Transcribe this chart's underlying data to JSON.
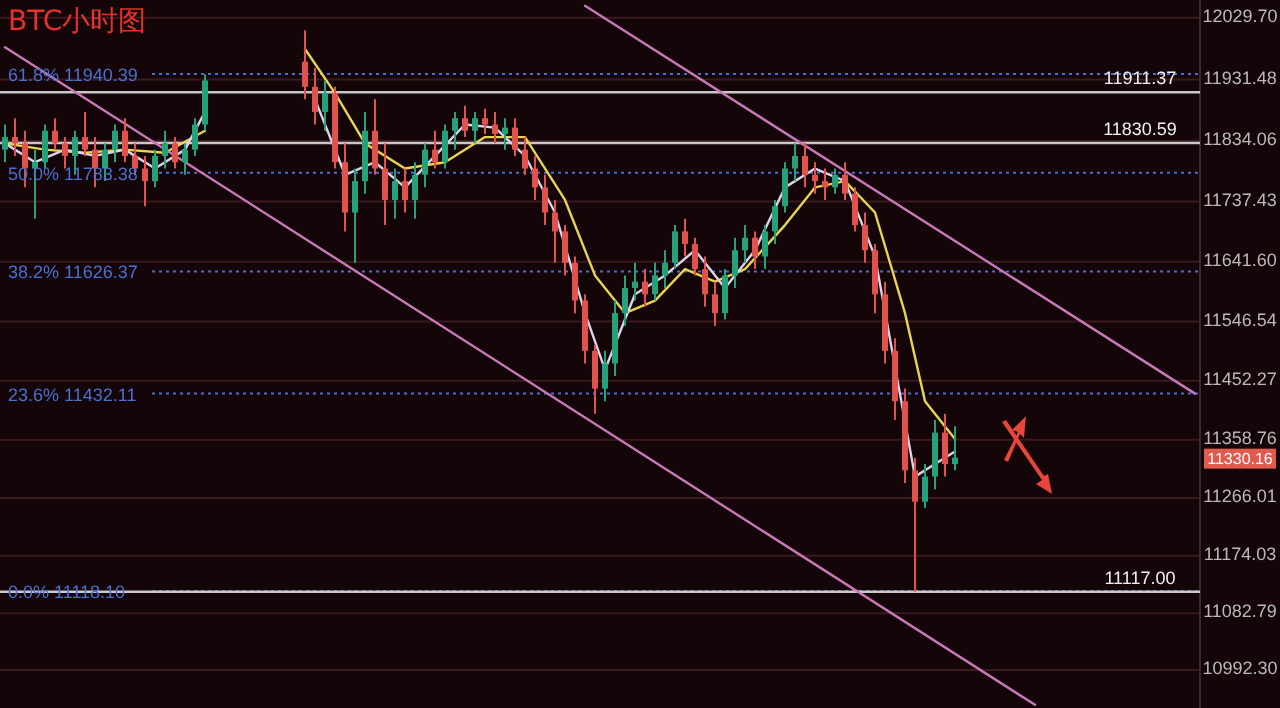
{
  "chart_data": {
    "type": "candlestick",
    "title": "BTC小时图",
    "categories": [
      null,
      null,
      null,
      null,
      null,
      null,
      null,
      null,
      null,
      null,
      null,
      null,
      null,
      null,
      null,
      null,
      null,
      null,
      null,
      null,
      null,
      null,
      null,
      null,
      null,
      null,
      null,
      null,
      null,
      null,
      null,
      null,
      null,
      null,
      null,
      null,
      null,
      null,
      null,
      null,
      null,
      null,
      null,
      null,
      null,
      null,
      null,
      null,
      null,
      null,
      null,
      null,
      null,
      null,
      null,
      null,
      null,
      null,
      null,
      null,
      null,
      null,
      null,
      null,
      null,
      null,
      null,
      null,
      null,
      null,
      null,
      null,
      null,
      null,
      null,
      null,
      null,
      null,
      null,
      null,
      null,
      null,
      null,
      null,
      null,
      null,
      null,
      null,
      null,
      null,
      null,
      null,
      null,
      null,
      null,
      null,
      null,
      null,
      null,
      null,
      null,
      null,
      null,
      null,
      null,
      null,
      null,
      null,
      null,
      null,
      null,
      null,
      null,
      null,
      null,
      null,
      null,
      null,
      null,
      null
    ],
    "ohlc": [
      [
        11820,
        11860,
        11800,
        11840
      ],
      [
        11840,
        11870,
        11810,
        11830
      ],
      [
        11830,
        11850,
        11760,
        11790
      ],
      [
        11790,
        11820,
        11710,
        11800
      ],
      [
        11800,
        11860,
        11790,
        11850
      ],
      [
        11850,
        11870,
        11820,
        11830
      ],
      [
        11830,
        11840,
        11790,
        11810
      ],
      [
        11810,
        11850,
        11780,
        11840
      ],
      [
        11840,
        11880,
        11810,
        11820
      ],
      [
        11820,
        11840,
        11760,
        11790
      ],
      [
        11790,
        11830,
        11770,
        11820
      ],
      [
        11820,
        11860,
        11800,
        11850
      ],
      [
        11850,
        11870,
        11800,
        11810
      ],
      [
        11810,
        11830,
        11780,
        11790
      ],
      [
        11790,
        11810,
        11730,
        11770
      ],
      [
        11770,
        11820,
        11760,
        11810
      ],
      [
        11810,
        11850,
        11790,
        11830
      ],
      [
        11830,
        11840,
        11790,
        11800
      ],
      [
        11800,
        11830,
        11780,
        11820
      ],
      [
        11820,
        11870,
        11810,
        11860
      ],
      [
        11860,
        11940,
        11850,
        11930
      ],
      null,
      null,
      null,
      null,
      null,
      null,
      null,
      null,
      null,
      [
        11960,
        12010,
        11900,
        11920
      ],
      [
        11920,
        11950,
        11860,
        11880
      ],
      [
        11880,
        11930,
        11850,
        11910
      ],
      [
        11910,
        11920,
        11790,
        11800
      ],
      [
        11800,
        11830,
        11690,
        11720
      ],
      [
        11720,
        11790,
        11640,
        11770
      ],
      [
        11770,
        11880,
        11750,
        11850
      ],
      [
        11850,
        11900,
        11780,
        11790
      ],
      [
        11790,
        11830,
        11700,
        11740
      ],
      [
        11740,
        11790,
        11710,
        11770
      ],
      [
        11770,
        11790,
        11720,
        11740
      ],
      [
        11740,
        11800,
        11710,
        11780
      ],
      [
        11780,
        11830,
        11760,
        11820
      ],
      [
        11820,
        11850,
        11790,
        11800
      ],
      [
        11800,
        11860,
        11790,
        11850
      ],
      [
        11850,
        11880,
        11820,
        11870
      ],
      [
        11870,
        11890,
        11840,
        11850
      ],
      [
        11850,
        11880,
        11830,
        11870
      ],
      [
        11870,
        11885,
        11845,
        11860
      ],
      [
        11860,
        11880,
        11830,
        11845
      ],
      [
        11845,
        11870,
        11820,
        11855
      ],
      [
        11855,
        11870,
        11810,
        11820
      ],
      [
        11820,
        11840,
        11780,
        11790
      ],
      [
        11790,
        11810,
        11740,
        11760
      ],
      [
        11760,
        11780,
        11700,
        11720
      ],
      [
        11720,
        11740,
        11640,
        11690
      ],
      [
        11690,
        11700,
        11620,
        11640
      ],
      [
        11640,
        11650,
        11560,
        11580
      ],
      [
        11580,
        11590,
        11480,
        11500
      ],
      [
        11500,
        11510,
        11400,
        11440
      ],
      [
        11440,
        11500,
        11420,
        11480
      ],
      [
        11480,
        11580,
        11460,
        11560
      ],
      [
        11560,
        11620,
        11540,
        11600
      ],
      [
        11600,
        11640,
        11580,
        11610
      ],
      [
        11610,
        11630,
        11570,
        11590
      ],
      [
        11590,
        11640,
        11580,
        11620
      ],
      [
        11620,
        11660,
        11600,
        11640
      ],
      [
        11640,
        11700,
        11630,
        11690
      ],
      [
        11690,
        11710,
        11650,
        11670
      ],
      [
        11670,
        11680,
        11620,
        11630
      ],
      [
        11630,
        11650,
        11570,
        11590
      ],
      [
        11590,
        11610,
        11540,
        11560
      ],
      [
        11560,
        11630,
        11550,
        11620
      ],
      [
        11620,
        11680,
        11600,
        11660
      ],
      [
        11660,
        11700,
        11640,
        11680
      ],
      [
        11680,
        11690,
        11630,
        11650
      ],
      [
        11650,
        11700,
        11630,
        11690
      ],
      [
        11690,
        11740,
        11670,
        11730
      ],
      [
        11730,
        11800,
        11720,
        11790
      ],
      [
        11790,
        11830,
        11770,
        11810
      ],
      [
        11810,
        11830.59,
        11760,
        11780
      ],
      [
        11780,
        11800,
        11750,
        11770
      ],
      [
        11770,
        11790,
        11740,
        11760
      ],
      [
        11760,
        11790,
        11750,
        11780
      ],
      [
        11780,
        11800,
        11740,
        11750
      ],
      [
        11750,
        11760,
        11690,
        11700
      ],
      [
        11700,
        11720,
        11640,
        11660
      ],
      [
        11660,
        11670,
        11560,
        11590
      ],
      [
        11590,
        11610,
        11480,
        11500
      ],
      [
        11500,
        11520,
        11390,
        11420
      ],
      [
        11420,
        11440,
        11290,
        11310
      ],
      [
        11310,
        11330,
        11117,
        11260
      ],
      [
        11260,
        11320,
        11250,
        11300
      ],
      [
        11300,
        11390,
        11280,
        11370
      ],
      [
        11370,
        11400,
        11300,
        11320
      ],
      [
        11320,
        11380,
        11310,
        11330.16
      ],
      null,
      null,
      null,
      null,
      null,
      null,
      null,
      null,
      null,
      null,
      null,
      null,
      null,
      null,
      null,
      null,
      null,
      null,
      null,
      null,
      null,
      null,
      null,
      null
    ],
    "series": [
      {
        "type": "line",
        "color": "#e8d44d",
        "values": [
          11830,
          null,
          null,
          null,
          11820,
          null,
          null,
          null,
          11815,
          null,
          null,
          null,
          11820,
          null,
          null,
          null,
          11815,
          null,
          null,
          null,
          11850,
          null,
          null,
          null,
          null,
          null,
          null,
          null,
          null,
          null,
          null,
          null,
          null,
          null,
          null,
          null,
          null,
          null,
          null,
          null,
          null,
          null,
          null,
          null,
          null,
          null,
          null,
          null,
          null,
          null,
          null,
          null,
          null,
          null,
          null,
          null,
          null,
          null,
          null,
          null,
          null,
          null,
          null,
          null,
          null,
          null,
          null,
          null,
          null,
          null,
          null,
          null,
          null,
          null,
          null,
          null,
          null,
          null,
          null,
          null,
          null,
          null,
          null,
          null,
          null,
          null,
          null,
          null,
          null,
          null,
          null,
          null,
          null,
          null,
          null,
          null,
          null,
          null,
          null,
          null,
          null,
          null,
          null,
          null,
          null,
          null,
          null,
          null,
          null,
          null,
          null,
          null,
          null,
          null,
          null,
          null,
          null,
          null,
          null,
          null
        ]
      },
      {
        "type": "line",
        "color": "#e8d44d",
        "values": [
          null,
          null,
          null,
          null,
          null,
          null,
          null,
          null,
          null,
          null,
          null,
          null,
          null,
          null,
          null,
          null,
          null,
          null,
          null,
          null,
          null,
          null,
          null,
          null,
          null,
          null,
          null,
          null,
          null,
          null,
          11980,
          null,
          null,
          11910,
          null,
          null,
          11830,
          null,
          null,
          null,
          11790,
          null,
          null,
          null,
          11800,
          null,
          null,
          null,
          11840,
          null,
          null,
          null,
          11840,
          null,
          null,
          null,
          11740,
          null,
          null,
          11620,
          null,
          null,
          11560,
          null,
          null,
          11580,
          null,
          null,
          11630,
          null,
          null,
          11610,
          null,
          null,
          11630,
          null,
          null,
          null,
          11700,
          null,
          null,
          11760,
          null,
          null,
          11770,
          null,
          null,
          11720,
          null,
          null,
          11560,
          null,
          11420,
          null,
          null,
          11360,
          null,
          null,
          null,
          null,
          null,
          null,
          null,
          null,
          null,
          null,
          null,
          null,
          null,
          null,
          null,
          null,
          null,
          null,
          null,
          null,
          null,
          null,
          null,
          null
        ]
      },
      {
        "type": "line",
        "color": "#ddd4ec",
        "values": [
          11830,
          null,
          null,
          11800,
          null,
          null,
          11820,
          null,
          null,
          11810,
          null,
          null,
          11820,
          null,
          null,
          11790,
          null,
          null,
          11820,
          null,
          11880,
          null,
          null,
          null,
          null,
          null,
          null,
          null,
          null,
          null,
          null,
          null,
          null,
          null,
          null,
          null,
          null,
          null,
          null,
          null,
          null,
          null,
          null,
          null,
          null,
          null,
          null,
          null,
          null,
          null,
          null,
          null,
          null,
          null,
          null,
          null,
          null,
          null,
          null,
          null,
          null,
          null,
          null,
          null,
          null,
          null,
          null,
          null,
          null,
          null,
          null,
          null,
          null,
          null,
          null,
          null,
          null,
          null,
          null,
          null,
          null,
          null,
          null,
          null,
          null,
          null,
          null,
          null,
          null,
          null,
          null,
          null,
          null,
          null,
          null,
          null,
          null,
          null,
          null,
          null,
          null,
          null,
          null,
          null,
          null,
          null,
          null,
          null,
          null,
          null,
          null,
          null,
          null,
          null,
          null,
          null,
          null,
          null,
          null,
          null
        ]
      },
      {
        "type": "line",
        "color": "#ddd4ec",
        "values": [
          null,
          null,
          null,
          null,
          null,
          null,
          null,
          null,
          null,
          null,
          null,
          null,
          null,
          null,
          null,
          null,
          null,
          null,
          null,
          null,
          null,
          null,
          null,
          null,
          null,
          null,
          null,
          null,
          null,
          null,
          null,
          11900,
          null,
          null,
          11780,
          null,
          null,
          11800,
          null,
          null,
          11760,
          null,
          null,
          11810,
          null,
          null,
          11860,
          null,
          null,
          11855,
          null,
          null,
          11810,
          null,
          null,
          11720,
          null,
          null,
          11560,
          null,
          11470,
          null,
          null,
          11590,
          null,
          null,
          11620,
          null,
          null,
          11660,
          null,
          null,
          11600,
          null,
          null,
          11660,
          null,
          null,
          11760,
          null,
          null,
          11790,
          null,
          null,
          11770,
          null,
          null,
          11650,
          null,
          null,
          null,
          11300,
          null,
          11320,
          null,
          11340,
          null,
          null,
          null,
          null,
          null,
          null,
          null,
          null,
          null,
          null,
          null,
          null,
          null,
          null,
          null,
          null,
          null,
          null,
          null,
          null,
          null,
          null,
          null,
          null
        ]
      },
      {
        "type": "line",
        "color": "#c878b8",
        "values": [
          null,
          null,
          null,
          null,
          null,
          null,
          null,
          null,
          null,
          null,
          null,
          null,
          null,
          null,
          null,
          null,
          null,
          null,
          null,
          null,
          null,
          null,
          null,
          null,
          null,
          null,
          null,
          null,
          null,
          null,
          null,
          null,
          null,
          null,
          null,
          null,
          null,
          null,
          null,
          null,
          null,
          null,
          null,
          null,
          null,
          null,
          null,
          null,
          null,
          null,
          null,
          null,
          null,
          null,
          null,
          null,
          null,
          null,
          12049,
          null,
          null,
          null,
          null,
          null,
          null,
          null,
          null,
          null,
          null,
          null,
          null,
          null,
          null,
          null,
          null,
          null,
          null,
          null,
          null,
          null,
          null,
          null,
          null,
          null,
          null,
          null,
          null,
          null,
          null,
          null,
          null,
          null,
          null,
          null,
          null,
          null,
          null,
          null,
          null,
          null,
          null,
          null,
          null,
          null,
          null,
          null,
          null,
          null,
          null,
          null,
          null,
          null,
          null,
          null,
          null,
          null,
          null,
          null,
          null,
          11432
        ]
      },
      {
        "type": "line",
        "color": "#c878b8",
        "values": [
          11983,
          null,
          null,
          null,
          null,
          null,
          null,
          null,
          null,
          null,
          null,
          null,
          null,
          null,
          null,
          null,
          null,
          null,
          null,
          null,
          null,
          null,
          null,
          null,
          null,
          null,
          null,
          null,
          null,
          null,
          null,
          null,
          null,
          null,
          null,
          null,
          null,
          null,
          null,
          null,
          null,
          null,
          null,
          null,
          null,
          null,
          null,
          null,
          null,
          null,
          null,
          null,
          null,
          null,
          null,
          null,
          null,
          null,
          null,
          null,
          null,
          null,
          null,
          null,
          null,
          null,
          null,
          null,
          null,
          null,
          null,
          null,
          null,
          null,
          null,
          null,
          null,
          null,
          null,
          null,
          null,
          null,
          null,
          null,
          null,
          null,
          null,
          null,
          null,
          null,
          null,
          null,
          null,
          null,
          null,
          null,
          null,
          null,
          null,
          null,
          null,
          null,
          null,
          10937,
          null,
          null,
          null,
          null,
          null,
          null,
          null,
          null,
          null,
          null,
          null,
          null,
          null,
          null,
          null,
          null
        ]
      }
    ],
    "ylim": [
      10932,
      12058
    ],
    "yticks": [
      {
        "value": 12029.7,
        "label": "12029.70"
      },
      {
        "value": 11931.48,
        "label": "11931.48"
      },
      {
        "value": 11834.06,
        "label": "11834.06"
      },
      {
        "value": 11737.43,
        "label": "11737.43"
      },
      {
        "value": 11641.6,
        "label": "11641.60"
      },
      {
        "value": 11546.54,
        "label": "11546.54"
      },
      {
        "value": 11452.27,
        "label": "11452.27"
      },
      {
        "value": 11358.76,
        "label": "11358.76"
      },
      {
        "value": 11266.01,
        "label": "11266.01"
      },
      {
        "value": 11174.03,
        "label": "11174.03"
      },
      {
        "value": 11082.79,
        "label": "11082.79"
      },
      {
        "value": 10992.3,
        "label": "10992.30"
      }
    ],
    "tick_labels": "y",
    "grid": "y",
    "ref_lines": [
      {
        "axis": "y",
        "value": 11940.39,
        "label": "61.8% 11940.39",
        "color": "#4a6fd0",
        "line_style": "dotted"
      },
      {
        "axis": "y",
        "value": 11783.38,
        "label": "50.0% 11783.38",
        "color": "#4a6fd0",
        "line_style": "dotted"
      },
      {
        "axis": "y",
        "value": 11626.37,
        "label": "38.2% 11626.37",
        "color": "#4a6fd0",
        "line_style": "dotted"
      },
      {
        "axis": "y",
        "value": 11432.11,
        "label": "23.6% 11432.11",
        "color": "#4a6fd0",
        "line_style": "dotted"
      },
      {
        "axis": "y",
        "value": 11118.1,
        "label": "0.0% 11118.10",
        "color": "#4a6fd0",
        "line_style": "dotted"
      },
      {
        "axis": "y",
        "value": 11911.37,
        "label": "11911.37",
        "color": "#c8c8c8",
        "line_style": "solid"
      },
      {
        "axis": "y",
        "value": 11830.59,
        "label": "11830.59",
        "color": "#c8c8c8",
        "line_style": "solid"
      },
      {
        "axis": "y",
        "value": 11117,
        "label": "11117.00",
        "color": "#c8c8c8",
        "line_style": "solid"
      }
    ],
    "annotations": [
      "11330.16"
    ]
  }
}
